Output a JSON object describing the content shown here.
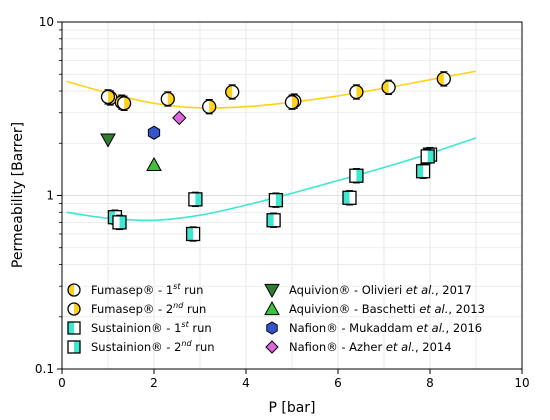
{
  "chart_data": {
    "type": "scatter",
    "xlabel": "P [bar]",
    "ylabel": "Permeability [Barrer]",
    "x_scale": "linear",
    "y_scale": "log",
    "xlim": [
      0,
      10
    ],
    "ylim": [
      0.1,
      10
    ],
    "x_ticks": [
      "0",
      "2",
      "4",
      "6",
      "8",
      "10"
    ],
    "y_ticks": [
      "0.1",
      "1",
      "10"
    ],
    "grid": true,
    "legend_position": "lower-center",
    "colors": {
      "fumasep": "#ffd21a",
      "sustainion": "#3ee8d0",
      "aquivion": "#2e7d32",
      "aquivion_light": "#3cc23c",
      "nafion_blue": "#3355cc",
      "nafion_pink": "#dd66dd"
    },
    "series": [
      {
        "name": "Fumasep® - 1st run",
        "name_base": "Fumasep® - 1",
        "name_sup": "st",
        "name_tail": " run",
        "marker": "circle-half-left",
        "color": "#ffd21a",
        "points": [
          {
            "x": 1.05,
            "y": 3.65
          },
          {
            "x": 1.3,
            "y": 3.45
          },
          {
            "x": 3.7,
            "y": 3.95
          },
          {
            "x": 5.05,
            "y": 3.5
          },
          {
            "x": 7.1,
            "y": 4.2
          },
          {
            "x": 8.3,
            "y": 4.7
          }
        ]
      },
      {
        "name": "Fumasep® - 2nd run",
        "name_base": "Fumasep® - 2",
        "name_sup": "nd",
        "name_tail": " run",
        "marker": "circle-half-right",
        "color": "#ffd21a",
        "points": [
          {
            "x": 1.0,
            "y": 3.7
          },
          {
            "x": 1.35,
            "y": 3.4
          },
          {
            "x": 2.3,
            "y": 3.6
          },
          {
            "x": 3.2,
            "y": 3.25
          },
          {
            "x": 5.0,
            "y": 3.45
          },
          {
            "x": 6.4,
            "y": 3.95
          }
        ]
      },
      {
        "name": "Sustainion® - 1st run",
        "name_base": "Sustainion® - 1",
        "name_sup": "st",
        "name_tail": " run",
        "marker": "square-half-left",
        "color": "#3ee8d0",
        "points": [
          {
            "x": 1.15,
            "y": 0.75
          },
          {
            "x": 2.85,
            "y": 0.6
          },
          {
            "x": 4.6,
            "y": 0.72
          },
          {
            "x": 6.25,
            "y": 0.97
          },
          {
            "x": 7.85,
            "y": 1.38
          },
          {
            "x": 8.0,
            "y": 1.72
          }
        ]
      },
      {
        "name": "Sustainion® - 2nd run",
        "name_base": "Sustainion® - 2",
        "name_sup": "nd",
        "name_tail": " run",
        "marker": "square-half-right",
        "color": "#3ee8d0",
        "points": [
          {
            "x": 1.25,
            "y": 0.7
          },
          {
            "x": 2.9,
            "y": 0.95
          },
          {
            "x": 4.65,
            "y": 0.94
          },
          {
            "x": 6.4,
            "y": 1.3
          },
          {
            "x": 7.95,
            "y": 1.68
          }
        ]
      },
      {
        "name": "Aquivion® - Olivieri et al., 2017",
        "name_base": "Aquivion® - Olivieri ",
        "name_italic": "et al.",
        "name_tail": ", 2017",
        "marker": "triangle-down",
        "color": "#2e7d32",
        "points": [
          {
            "x": 1.0,
            "y": 2.1
          }
        ]
      },
      {
        "name": "Aquivion® - Baschetti et al., 2013",
        "name_base": "Aquivion® - Baschetti ",
        "name_italic": "et al.",
        "name_tail": ", 2013",
        "marker": "triangle-up",
        "color": "#3cc23c",
        "points": [
          {
            "x": 2.0,
            "y": 1.5
          }
        ]
      },
      {
        "name": "Nafion® - Mukaddam et al., 2016",
        "name_base": "Nafion® - Mukaddam ",
        "name_italic": "et al.",
        "name_tail": ", 2016",
        "marker": "hexagon",
        "color": "#3355cc",
        "points": [
          {
            "x": 2.0,
            "y": 2.3
          }
        ]
      },
      {
        "name": "Nafion® - Azher et al., 2014",
        "name_base": "Nafion® - Azher ",
        "name_italic": "et al.",
        "name_tail": ", 2014",
        "marker": "diamond",
        "color": "#dd66dd",
        "points": [
          {
            "x": 2.55,
            "y": 2.8
          }
        ]
      }
    ],
    "fit_lines": [
      {
        "color": "#ffd21a",
        "points": [
          {
            "x": 0.1,
            "y": 4.55
          },
          {
            "x": 1,
            "y": 3.9
          },
          {
            "x": 2,
            "y": 3.4
          },
          {
            "x": 3,
            "y": 3.2
          },
          {
            "x": 4,
            "y": 3.25
          },
          {
            "x": 5,
            "y": 3.45
          },
          {
            "x": 6,
            "y": 3.75
          },
          {
            "x": 7,
            "y": 4.15
          },
          {
            "x": 8,
            "y": 4.65
          },
          {
            "x": 9,
            "y": 5.2
          }
        ]
      },
      {
        "color": "#3ee8d0",
        "points": [
          {
            "x": 0.1,
            "y": 0.8
          },
          {
            "x": 1,
            "y": 0.74
          },
          {
            "x": 2,
            "y": 0.72
          },
          {
            "x": 3,
            "y": 0.77
          },
          {
            "x": 4,
            "y": 0.88
          },
          {
            "x": 5,
            "y": 1.03
          },
          {
            "x": 6,
            "y": 1.22
          },
          {
            "x": 7,
            "y": 1.45
          },
          {
            "x": 8,
            "y": 1.75
          },
          {
            "x": 9,
            "y": 2.15
          }
        ]
      }
    ]
  }
}
